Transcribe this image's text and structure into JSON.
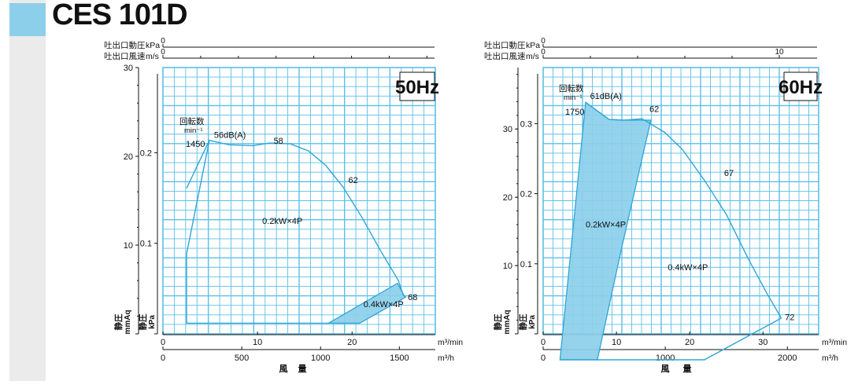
{
  "page": {
    "title": "CES 101D"
  },
  "colors": {
    "curve": "#2fa5d6",
    "grid": "#5cbfe8",
    "fill": "#8ccfea",
    "text": "#111111"
  },
  "chart_data": [
    {
      "type": "line",
      "title": "50Hz",
      "top_scales": [
        {
          "label": "吐出口動圧",
          "unit": "kPa",
          "ticks": [
            {
              "v": 0,
              "t": "0"
            }
          ],
          "minor": [],
          "range": [
            0,
            14.4
          ]
        },
        {
          "label": "吐出口風速",
          "unit": "m/s",
          "ticks": [
            {
              "v": 0,
              "t": "0"
            }
          ],
          "minor": [
            2,
            4,
            6,
            8,
            10,
            12,
            14
          ],
          "range": [
            0,
            14.4
          ]
        }
      ],
      "y_scales": [
        {
          "label": "静圧",
          "unit": "mmAq",
          "ticks": [
            {
              "v": 0,
              "t": ""
            },
            {
              "v": 10,
              "t": "10"
            },
            {
              "v": 20,
              "t": "20"
            },
            {
              "v": 30,
              "t": "30"
            }
          ],
          "range": [
            0,
            30
          ]
        },
        {
          "label": "静圧",
          "unit": "kPa",
          "ticks": [
            {
              "v": 0,
              "t": ""
            },
            {
              "v": 0.1,
              "t": "0.1"
            },
            {
              "v": 0.2,
              "t": "0.2"
            }
          ],
          "range": [
            0,
            0.294
          ]
        }
      ],
      "x_scales": [
        {
          "label": "風量",
          "unit": "m³/min",
          "ticks": [
            {
              "v": 0,
              "t": "0"
            },
            {
              "v": 10,
              "t": "10"
            },
            {
              "v": 20,
              "t": "20"
            }
          ],
          "range": [
            0,
            28.8
          ]
        },
        {
          "label": "風量",
          "unit": "m³/h",
          "ticks": [
            {
              "v": 0,
              "t": "0"
            },
            {
              "v": 500,
              "t": "500"
            },
            {
              "v": 1000,
              "t": "1000"
            },
            {
              "v": 1500,
              "t": "1500"
            }
          ],
          "range": [
            0,
            1728
          ]
        }
      ],
      "rpm_label": "回転数",
      "rpm_unit": "min⁻¹",
      "rpm": "1450",
      "series": [
        {
          "name": "",
          "x": [
            2.5,
            4.9,
            7.0,
            9.5,
            11.3,
            13.5,
            15.4,
            17.2,
            19.0,
            21.0,
            23.0,
            24.9,
            25.4,
            25.7
          ],
          "y": [
            16.4,
            21.8,
            21.3,
            21.2,
            21.5,
            21.4,
            20.6,
            19.0,
            16.6,
            13.2,
            9.4,
            6.0,
            4.4,
            4.1
          ]
        },
        {
          "name": "",
          "x": [
            4.9,
            2.5,
            2.5,
            17.5
          ],
          "y": [
            21.8,
            9.0,
            1.2,
            1.2
          ]
        }
      ],
      "regions": [
        {
          "label": "0.4kW×4P",
          "x": [
            17.5,
            24.8,
            25.6,
            20.8
          ],
          "y": [
            1.2,
            5.7,
            4.1,
            1.2
          ]
        }
      ],
      "labels": [
        {
          "text": "56dB(A)",
          "x": 5.4,
          "y": 22.1
        },
        {
          "text": "58",
          "x": 11.7,
          "y": 21.4
        },
        {
          "text": "62",
          "x": 19.6,
          "y": 17.0
        },
        {
          "text": "68",
          "x": 25.9,
          "y": 3.8
        },
        {
          "text": "0.2kW×4P",
          "x": 10.5,
          "y": 12.4
        },
        {
          "text": "0.4kW×4P",
          "x": 21.2,
          "y": 3.0
        }
      ]
    },
    {
      "type": "line",
      "title": "60Hz",
      "top_scales": [
        {
          "label": "吐出口動圧",
          "unit": "kPa",
          "ticks": [
            {
              "v": 0,
              "t": "0"
            }
          ],
          "minor": [],
          "range": [
            0,
            11.6
          ]
        },
        {
          "label": "吐出口風速",
          "unit": "m/s",
          "ticks": [
            {
              "v": 0,
              "t": "0"
            },
            {
              "v": 10,
              "t": "10"
            }
          ],
          "minor": [
            2,
            4,
            6,
            8
          ],
          "range": [
            0,
            11.6
          ]
        }
      ],
      "y_scales": [
        {
          "label": "静圧",
          "unit": "mmAq",
          "ticks": [
            {
              "v": 0,
              "t": ""
            },
            {
              "v": 10,
              "t": "10"
            },
            {
              "v": 20,
              "t": "20"
            },
            {
              "v": 30,
              "t": "30"
            }
          ],
          "range": [
            0,
            39
          ]
        },
        {
          "label": "静圧",
          "unit": "kPa",
          "ticks": [
            {
              "v": 0,
              "t": ""
            },
            {
              "v": 0.1,
              "t": "0.1"
            },
            {
              "v": 0.2,
              "t": "0.2"
            },
            {
              "v": 0.3,
              "t": "0.3"
            }
          ],
          "range": [
            0,
            0.38
          ]
        }
      ],
      "x_scales": [
        {
          "label": "風量",
          "unit": "m³/min",
          "ticks": [
            {
              "v": 0,
              "t": "0"
            },
            {
              "v": 10,
              "t": "10"
            },
            {
              "v": 20,
              "t": "20"
            },
            {
              "v": 30,
              "t": "30"
            }
          ],
          "range": [
            0,
            37.6
          ]
        },
        {
          "label": "風量",
          "unit": "m³/h",
          "ticks": [
            {
              "v": 0,
              "t": "0"
            },
            {
              "v": 1000,
              "t": "1000"
            },
            {
              "v": 2000,
              "t": "2000"
            }
          ],
          "range": [
            0,
            2256
          ]
        }
      ],
      "rpm_label": "回転数",
      "rpm_unit": "min⁻¹",
      "rpm": "1750",
      "series": [
        {
          "name": "",
          "x": [
            5.8,
            9.0,
            11.0,
            13.5,
            16.6,
            19.0,
            22.0,
            25.0,
            28.0,
            30.5,
            32.5
          ],
          "y": [
            33.9,
            31.4,
            31.3,
            31.5,
            29.5,
            27.0,
            22.5,
            17.5,
            11.0,
            6.0,
            2.3
          ]
        },
        {
          "name": "",
          "x": [
            32.5,
            22.0,
            2.3
          ],
          "y": [
            2.3,
            -3.8,
            -3.8
          ]
        }
      ],
      "regions": [
        {
          "label": "0.2kW×4P",
          "x": [
            5.8,
            9.0,
            11.0,
            14.7,
            10.8,
            7.4,
            2.3
          ],
          "y": [
            33.9,
            31.4,
            31.3,
            31.3,
            13.0,
            -3.8,
            -3.8
          ]
        }
      ],
      "labels": [
        {
          "text": "61dB(A)",
          "x": 6.4,
          "y": 34.4
        },
        {
          "text": "62",
          "x": 14.5,
          "y": 32.5
        },
        {
          "text": "67",
          "x": 24.7,
          "y": 23.1
        },
        {
          "text": "72",
          "x": 33.0,
          "y": 2.0
        },
        {
          "text": "0.2kW×4P",
          "x": 5.8,
          "y": 15.6
        },
        {
          "text": "0.4kW×4P",
          "x": 17.0,
          "y": 9.3
        }
      ]
    }
  ]
}
